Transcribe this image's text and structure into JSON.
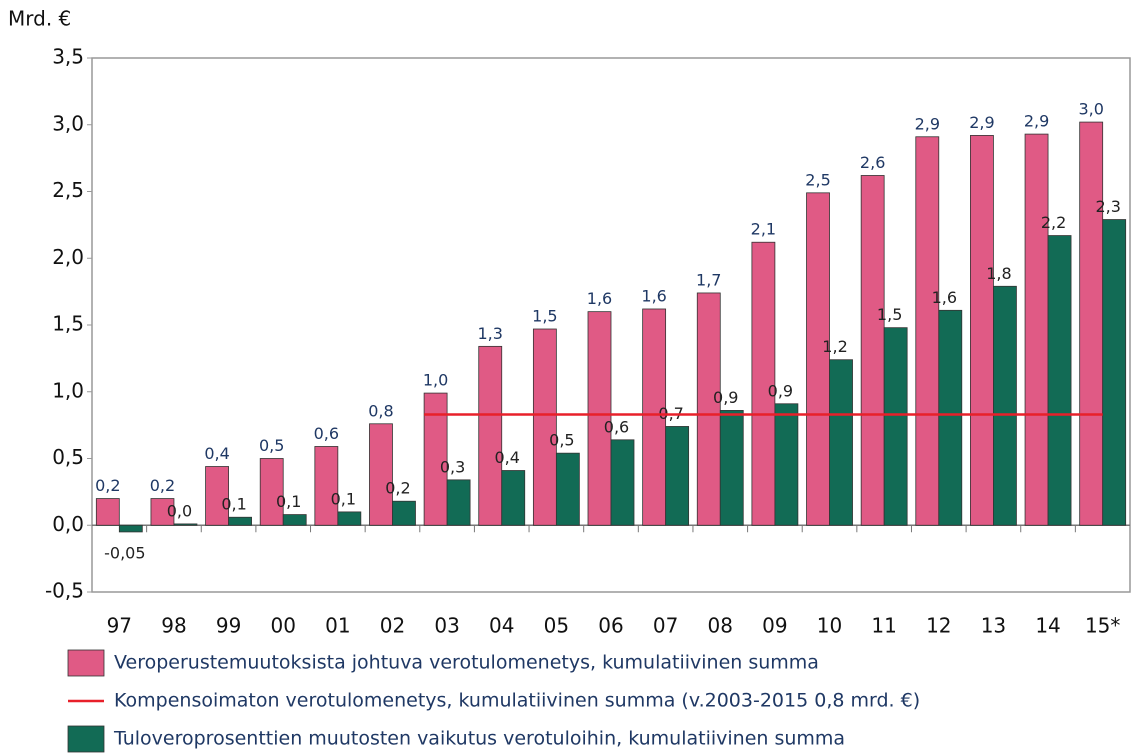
{
  "chart_data": {
    "type": "bar",
    "y_label": "Mrd. €",
    "categories": [
      "97",
      "98",
      "99",
      "00",
      "01",
      "02",
      "03",
      "04",
      "05",
      "06",
      "07",
      "08",
      "09",
      "10",
      "11",
      "12",
      "13",
      "14",
      "15*"
    ],
    "series": [
      {
        "name": "Veroperustemuutoksista johtuva verotulomenetys, kumulatiivinen summa",
        "color": "#e05a85",
        "values": [
          0.2,
          0.2,
          0.44,
          0.5,
          0.59,
          0.76,
          0.99,
          1.34,
          1.47,
          1.6,
          1.62,
          1.74,
          2.12,
          2.49,
          2.62,
          2.91,
          2.92,
          2.93,
          3.02
        ],
        "value_labels": [
          "0,2",
          "0,2",
          "0,4",
          "0,5",
          "0,6",
          "0,8",
          "1,0",
          "1,3",
          "1,5",
          "1,6",
          "1,6",
          "1,7",
          "2,1",
          "2,5",
          "2,6",
          "2,9",
          "2,9",
          "2,9",
          "3,0"
        ]
      },
      {
        "name": "Tuloveroprosenttien muutosten vaikutus verotuloihin, kumulatiivinen summa",
        "color": "#126b55",
        "values": [
          -0.05,
          0.01,
          0.06,
          0.08,
          0.1,
          0.18,
          0.34,
          0.41,
          0.54,
          0.64,
          0.74,
          0.86,
          0.91,
          1.24,
          1.48,
          1.61,
          1.79,
          2.17,
          2.29
        ],
        "value_labels": [
          "-0,05",
          "0,0",
          "0,1",
          "0,1",
          "0,1",
          "0,2",
          "0,3",
          "0,4",
          "0,5",
          "0,6",
          "0,7",
          "0,9",
          "0,9",
          "1,2",
          "1,5",
          "1,6",
          "1,8",
          "2,2",
          "2,3"
        ]
      }
    ],
    "reference_line": {
      "name": "Kompensoimaton verotulomenetys, kumulatiivinen summa (v.2003-2015 0,8 mrd. €)",
      "color": "#e8202a",
      "value": 0.83,
      "from": "03",
      "to": "15*"
    },
    "ylim": [
      -0.5,
      3.5
    ],
    "yticks": [
      {
        "value": -0.5,
        "label": "-0,5"
      },
      {
        "value": 0,
        "label": "0,0"
      },
      {
        "value": 0.5,
        "label": "0,5"
      },
      {
        "value": 1,
        "label": "1,0"
      },
      {
        "value": 1.5,
        "label": "1,5"
      },
      {
        "value": 2,
        "label": "2,0"
      },
      {
        "value": 2.5,
        "label": "2,5"
      },
      {
        "value": 3,
        "label": "3,0"
      },
      {
        "value": 3.5,
        "label": "3,5"
      }
    ],
    "grid": false
  }
}
